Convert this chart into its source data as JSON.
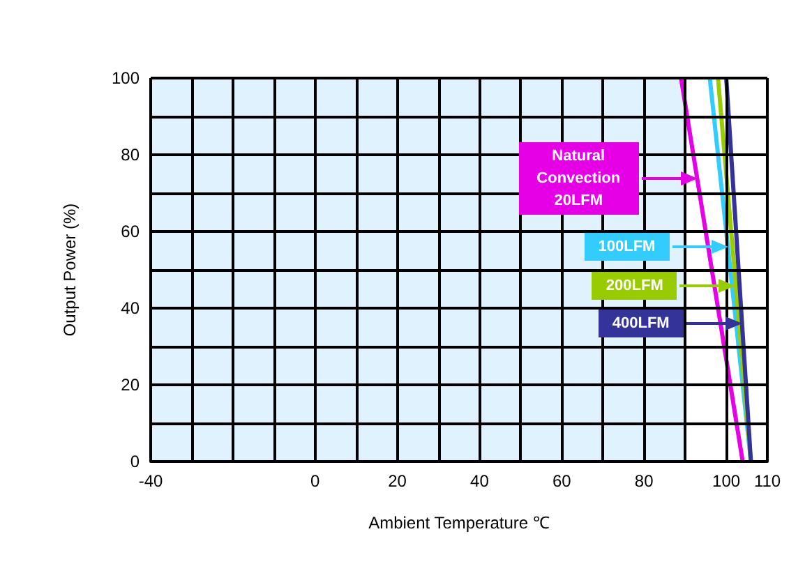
{
  "chart_data": {
    "type": "line",
    "xlabel": "Ambient Temperature ℃",
    "ylabel": "Output Power (%)",
    "xlim": [
      -40,
      110
    ],
    "ylim": [
      0,
      100
    ],
    "xticks": [
      -40,
      {
        "value": -30,
        "label": null
      },
      {
        "value": -20,
        "label": null
      },
      {
        "value": -10,
        "label": null
      },
      0,
      {
        "value": 10,
        "label": null
      },
      20,
      {
        "value": 30,
        "label": null
      },
      40,
      {
        "value": 50,
        "label": null
      },
      60,
      {
        "value": 70,
        "label": null
      },
      80,
      {
        "value": 90,
        "label": null
      },
      100,
      110
    ],
    "yticks": [
      0,
      {
        "value": 10,
        "label": null
      },
      20,
      {
        "value": 30,
        "label": null
      },
      40,
      {
        "value": 50,
        "label": null
      },
      60,
      {
        "value": 70,
        "label": null
      },
      80,
      {
        "value": 90,
        "label": null
      },
      100
    ],
    "grid": true,
    "legend": "right",
    "marker": "none",
    "line_style": "solid",
    "bands": [
      {
        "axis": "x",
        "from": -40,
        "to": 90,
        "color": "#e0f2fe"
      }
    ],
    "series": [
      {
        "name": "Natural Convection 20LFM",
        "color": "#e600e6",
        "x": [
          89,
          104
        ],
        "values": [
          100,
          0
        ]
      },
      {
        "name": "100LFM",
        "color": "#33ccff",
        "x": [
          96,
          106
        ],
        "values": [
          100,
          0
        ]
      },
      {
        "name": "200LFM",
        "color": "#99cc00",
        "x": [
          98,
          106
        ],
        "values": [
          100,
          0
        ]
      },
      {
        "name": "400LFM",
        "color": "#333399",
        "x": [
          100,
          106
        ],
        "values": [
          100,
          0
        ]
      }
    ]
  }
}
